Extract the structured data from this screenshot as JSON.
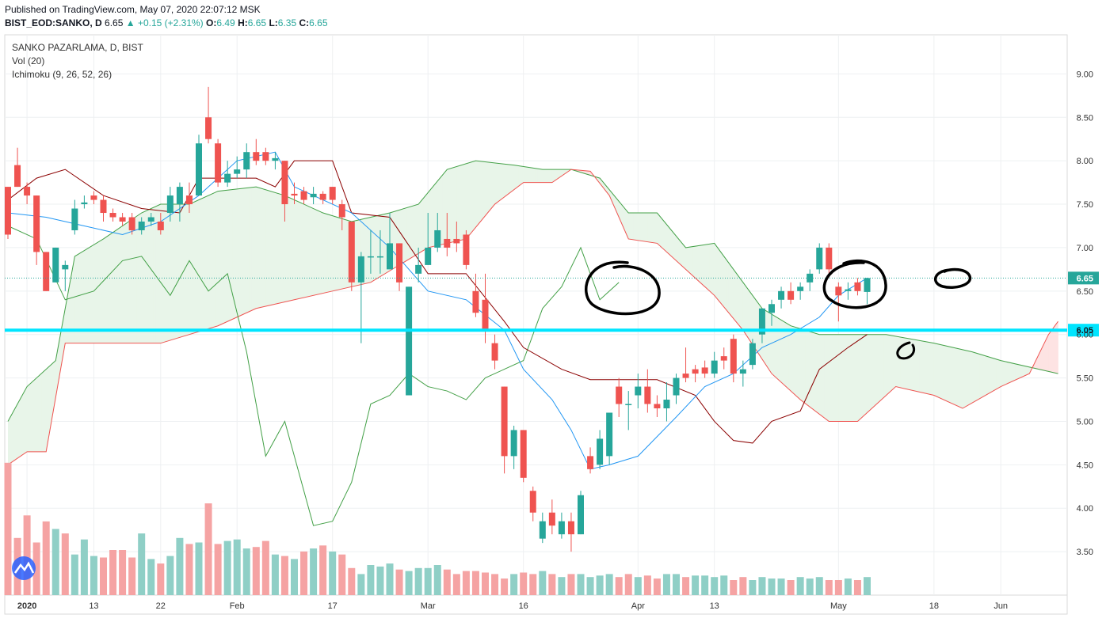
{
  "header": {
    "published": "Published on TradingView.com, May 07, 2020 22:07:12 MSK",
    "symbol": "BIST_EOD:SANKO, D",
    "last": "6.65",
    "change": "▲ +0.15 (+2.31%)",
    "o_label": "O:",
    "o_value": "6.49",
    "h_label": "H:",
    "h_value": "6.65",
    "l_label": "L:",
    "l_value": "6.35",
    "c_label": "C:",
    "c_value": "6.65"
  },
  "legend": {
    "title": "SANKO PAZARLAMA, D, BIST",
    "volume": "Vol (20)",
    "ichimoku": "Ichimoku (9, 26, 52, 26)"
  },
  "colors": {
    "up": "#26a69a",
    "down": "#ef5350",
    "vol_up": "#8fcfc6",
    "vol_down": "#f5a3a3",
    "tenkan": "#2196f3",
    "kijun": "#8b0000",
    "span_a": "#43a047",
    "span_b": "#ef5350",
    "cloud_green": "#e8f5e9",
    "cloud_red": "#fde3e3",
    "hline": "#00e5ff",
    "annotation": "#000000"
  },
  "chart_data": {
    "type": "candlestick",
    "title": "SANKO PAZARLAMA, D, BIST",
    "ylim": [
      3.0,
      9.45
    ],
    "y_ticks": [
      "3.50",
      "4.00",
      "4.50",
      "5.00",
      "5.50",
      "6.00",
      "6.50",
      "7.00",
      "7.50",
      "8.00",
      "8.50",
      "9.00"
    ],
    "x_ticks": [
      {
        "label": "2020",
        "bar": 2
      },
      {
        "label": "13",
        "bar": 9
      },
      {
        "label": "22",
        "bar": 16
      },
      {
        "label": "Feb",
        "bar": 24
      },
      {
        "label": "17",
        "bar": 34
      },
      {
        "label": "Mar",
        "bar": 44
      },
      {
        "label": "16",
        "bar": 54
      },
      {
        "label": "Apr",
        "bar": 66
      },
      {
        "label": "13",
        "bar": 74
      },
      {
        "label": "May",
        "bar": 87
      },
      {
        "label": "18",
        "bar": 97
      },
      {
        "label": "Jun",
        "bar": 104
      }
    ],
    "last_price_label": "6.65",
    "hline_label": "6.05",
    "hline_value": 6.05,
    "candles": [
      [
        7.7,
        7.15,
        7.7,
        7.1
      ],
      [
        7.95,
        7.7,
        8.15,
        7.7
      ],
      [
        7.7,
        7.6,
        7.75,
        7.5
      ],
      [
        7.6,
        6.95,
        7.6,
        6.8
      ],
      [
        6.95,
        6.5,
        6.95,
        6.5
      ],
      [
        6.6,
        7.0,
        7.0,
        6.6
      ],
      [
        6.75,
        6.8,
        6.85,
        6.5
      ],
      [
        7.2,
        7.45,
        7.55,
        7.15
      ],
      [
        7.5,
        7.52,
        7.6,
        7.45
      ],
      [
        7.6,
        7.55,
        7.65,
        7.5
      ],
      [
        7.55,
        7.4,
        7.6,
        7.3
      ],
      [
        7.4,
        7.35,
        7.45,
        7.3
      ],
      [
        7.35,
        7.3,
        7.4,
        7.25
      ],
      [
        7.35,
        7.2,
        7.4,
        7.15
      ],
      [
        7.2,
        7.3,
        7.35,
        7.15
      ],
      [
        7.3,
        7.35,
        7.4,
        7.25
      ],
      [
        7.3,
        7.2,
        7.4,
        7.15
      ],
      [
        7.4,
        7.6,
        7.7,
        7.3
      ],
      [
        7.5,
        7.7,
        7.75,
        7.3
      ],
      [
        7.6,
        7.5,
        7.75,
        7.4
      ],
      [
        7.6,
        8.2,
        8.3,
        7.6
      ],
      [
        8.5,
        8.25,
        8.85,
        8.2
      ],
      [
        8.2,
        7.75,
        8.25,
        7.7
      ],
      [
        7.75,
        7.85,
        8.0,
        7.7
      ],
      [
        7.85,
        7.9,
        8.05,
        7.8
      ],
      [
        7.9,
        8.1,
        8.2,
        7.8
      ],
      [
        8.1,
        8.0,
        8.25,
        7.95
      ],
      [
        8.1,
        8.0,
        8.15,
        7.95
      ],
      [
        8.0,
        8.03,
        8.1,
        7.9
      ],
      [
        8.0,
        7.5,
        8.0,
        7.3
      ],
      [
        7.62,
        7.6,
        7.75,
        7.5
      ],
      [
        7.65,
        7.55,
        7.7,
        7.5
      ],
      [
        7.58,
        7.62,
        7.7,
        7.5
      ],
      [
        7.62,
        7.55,
        7.65,
        7.5
      ],
      [
        7.7,
        7.55,
        7.7,
        7.5
      ],
      [
        7.5,
        7.35,
        7.55,
        7.2
      ],
      [
        7.3,
        6.6,
        7.3,
        6.5
      ],
      [
        6.6,
        6.9,
        6.95,
        5.9
      ],
      [
        6.9,
        6.9,
        7.2,
        6.7
      ],
      [
        6.9,
        6.9,
        7.2,
        6.7
      ],
      [
        6.75,
        7.05,
        7.4,
        6.75
      ],
      [
        7.05,
        6.6,
        7.05,
        6.5
      ],
      [
        5.3,
        6.55,
        6.55,
        5.3
      ],
      [
        6.7,
        6.8,
        7.0,
        6.6
      ],
      [
        6.8,
        7.0,
        7.4,
        6.8
      ],
      [
        7.0,
        7.2,
        7.4,
        6.95
      ],
      [
        7.1,
        7.0,
        7.4,
        6.9
      ],
      [
        7.1,
        7.05,
        7.3,
        6.95
      ],
      [
        7.15,
        6.8,
        7.2,
        6.75
      ],
      [
        6.5,
        6.25,
        6.7,
        6.2
      ],
      [
        6.4,
        6.05,
        6.7,
        5.9
      ],
      [
        5.9,
        5.7,
        6.0,
        5.6
      ],
      [
        5.4,
        4.6,
        5.4,
        4.4
      ],
      [
        4.6,
        4.9,
        4.95,
        4.45
      ],
      [
        4.9,
        4.35,
        4.9,
        4.3
      ],
      [
        4.2,
        3.95,
        4.25,
        3.85
      ],
      [
        3.65,
        3.85,
        3.95,
        3.6
      ],
      [
        3.95,
        3.8,
        4.1,
        3.7
      ],
      [
        3.7,
        3.85,
        3.95,
        3.65
      ],
      [
        3.85,
        3.7,
        3.95,
        3.5
      ],
      [
        3.7,
        4.15,
        4.2,
        3.7
      ],
      [
        4.6,
        4.45,
        4.7,
        4.4
      ],
      [
        4.5,
        4.8,
        4.9,
        4.45
      ],
      [
        4.6,
        5.1,
        5.1,
        4.5
      ],
      [
        5.4,
        5.2,
        5.5,
        5.05
      ],
      [
        5.2,
        5.2,
        5.35,
        4.9
      ],
      [
        5.3,
        5.4,
        5.55,
        5.15
      ],
      [
        5.4,
        5.2,
        5.6,
        5.1
      ],
      [
        5.2,
        5.15,
        5.3,
        5.05
      ],
      [
        5.15,
        5.25,
        5.45,
        5.0
      ],
      [
        5.3,
        5.5,
        5.55,
        5.2
      ],
      [
        5.55,
        5.5,
        5.85,
        5.45
      ],
      [
        5.6,
        5.55,
        5.65,
        5.45
      ],
      [
        5.62,
        5.55,
        5.7,
        5.5
      ],
      [
        5.55,
        5.7,
        5.8,
        5.5
      ],
      [
        5.75,
        5.7,
        5.85,
        5.6
      ],
      [
        5.95,
        5.55,
        6.0,
        5.45
      ],
      [
        5.55,
        5.6,
        5.7,
        5.4
      ],
      [
        5.65,
        5.9,
        5.95,
        5.6
      ],
      [
        6.0,
        6.3,
        6.3,
        5.9
      ],
      [
        6.25,
        6.35,
        6.4,
        6.1
      ],
      [
        6.4,
        6.5,
        6.55,
        6.3
      ],
      [
        6.5,
        6.4,
        6.6,
        6.35
      ],
      [
        6.5,
        6.55,
        6.6,
        6.4
      ],
      [
        6.6,
        6.7,
        6.75,
        6.5
      ],
      [
        6.75,
        7.0,
        7.05,
        6.7
      ],
      [
        7.0,
        6.75,
        7.05,
        6.7
      ],
      [
        6.55,
        6.45,
        6.6,
        6.15
      ],
      [
        6.5,
        6.52,
        6.6,
        6.4
      ],
      [
        6.6,
        6.5,
        6.65,
        6.45
      ],
      [
        6.49,
        6.65,
        6.65,
        6.35
      ]
    ],
    "volume_up": [
      false,
      false,
      false,
      false,
      false,
      true,
      false,
      true,
      true,
      true,
      false,
      false,
      false,
      false,
      true,
      true,
      false,
      true,
      true,
      false,
      true,
      false,
      false,
      true,
      true,
      true,
      false,
      false,
      true,
      false,
      true,
      false,
      true,
      false,
      true,
      false,
      false,
      true,
      true,
      true,
      true,
      false,
      true,
      true,
      true,
      true,
      false,
      false,
      false,
      false,
      false,
      false,
      false,
      true,
      false,
      false,
      true,
      false,
      true,
      false,
      true,
      true,
      true,
      true,
      false,
      false,
      true,
      false,
      false,
      true,
      true,
      false,
      true,
      true,
      true,
      true,
      false,
      false,
      true,
      true,
      true,
      true,
      false,
      true,
      true,
      true,
      false,
      false,
      true,
      false,
      true
    ],
    "volume_level": [
      0.88,
      0.38,
      0.53,
      0.35,
      0.49,
      0.44,
      0.41,
      0.27,
      0.37,
      0.26,
      0.25,
      0.3,
      0.3,
      0.25,
      0.41,
      0.24,
      0.21,
      0.26,
      0.38,
      0.34,
      0.35,
      0.61,
      0.34,
      0.36,
      0.37,
      0.31,
      0.32,
      0.36,
      0.27,
      0.26,
      0.24,
      0.29,
      0.31,
      0.33,
      0.29,
      0.27,
      0.18,
      0.14,
      0.2,
      0.19,
      0.21,
      0.17,
      0.16,
      0.18,
      0.18,
      0.2,
      0.17,
      0.14,
      0.16,
      0.16,
      0.15,
      0.14,
      0.11,
      0.14,
      0.15,
      0.14,
      0.16,
      0.14,
      0.12,
      0.14,
      0.14,
      0.12,
      0.13,
      0.14,
      0.12,
      0.14,
      0.12,
      0.13,
      0.11,
      0.14,
      0.14,
      0.12,
      0.13,
      0.13,
      0.12,
      0.13,
      0.1,
      0.12,
      0.1,
      0.12,
      0.11,
      0.11,
      0.1,
      0.12,
      0.11,
      0.12,
      0.1,
      0.1,
      0.11,
      0.1,
      0.12
    ],
    "tenkan": [
      [
        0,
        7.4
      ],
      [
        4,
        7.35
      ],
      [
        8,
        7.25
      ],
      [
        12,
        7.15
      ],
      [
        16,
        7.3
      ],
      [
        20,
        7.6
      ],
      [
        24,
        8.0
      ],
      [
        28,
        8.1
      ],
      [
        30,
        7.7
      ],
      [
        36,
        7.4
      ],
      [
        40,
        7.0
      ],
      [
        44,
        6.5
      ],
      [
        48,
        6.4
      ],
      [
        52,
        6.05
      ],
      [
        54,
        5.6
      ],
      [
        57,
        5.25
      ],
      [
        59,
        4.9
      ],
      [
        61,
        4.45
      ],
      [
        63,
        4.5
      ],
      [
        66,
        4.6
      ],
      [
        70,
        5.05
      ],
      [
        73,
        5.4
      ],
      [
        76,
        5.55
      ],
      [
        79,
        5.85
      ],
      [
        82,
        6.0
      ],
      [
        85,
        6.2
      ],
      [
        87,
        6.45
      ],
      [
        90,
        6.65
      ]
    ],
    "kijun": [
      [
        0,
        7.55
      ],
      [
        3,
        7.8
      ],
      [
        6,
        7.9
      ],
      [
        10,
        7.6
      ],
      [
        14,
        7.45
      ],
      [
        18,
        7.4
      ],
      [
        20,
        7.8
      ],
      [
        26,
        7.8
      ],
      [
        28,
        7.7
      ],
      [
        30,
        8.0
      ],
      [
        34,
        8.0
      ],
      [
        36,
        7.4
      ],
      [
        40,
        7.35
      ],
      [
        44,
        6.7
      ],
      [
        48,
        6.7
      ],
      [
        52,
        6.15
      ],
      [
        54,
        5.85
      ],
      [
        58,
        5.6
      ],
      [
        61,
        5.48
      ],
      [
        68,
        5.48
      ],
      [
        72,
        5.3
      ],
      [
        74,
        5.0
      ],
      [
        76,
        4.78
      ],
      [
        78,
        4.75
      ],
      [
        80,
        5.0
      ],
      [
        83,
        5.12
      ],
      [
        85,
        5.6
      ],
      [
        88,
        5.85
      ],
      [
        90,
        6.0
      ]
    ],
    "span_a": [
      [
        0,
        5.0
      ],
      [
        2,
        5.4
      ],
      [
        5,
        5.7
      ],
      [
        7,
        6.9
      ],
      [
        10,
        7.1
      ],
      [
        14,
        7.4
      ],
      [
        16,
        7.5
      ],
      [
        19,
        7.5
      ],
      [
        22,
        7.65
      ],
      [
        26,
        7.7
      ],
      [
        29,
        7.6
      ],
      [
        33,
        7.4
      ],
      [
        36,
        7.3
      ],
      [
        40,
        7.4
      ],
      [
        43,
        7.5
      ],
      [
        46,
        7.9
      ],
      [
        49,
        8.0
      ],
      [
        53,
        7.95
      ],
      [
        56,
        7.9
      ],
      [
        59,
        7.9
      ],
      [
        62,
        7.8
      ],
      [
        65,
        7.4
      ],
      [
        68,
        7.4
      ],
      [
        71,
        7.0
      ],
      [
        74,
        7.05
      ],
      [
        77,
        6.6
      ],
      [
        79,
        6.3
      ],
      [
        82,
        6.1
      ],
      [
        85,
        6.0
      ],
      [
        88,
        6.0
      ],
      [
        92,
        6.0
      ],
      [
        97,
        5.9
      ],
      [
        101,
        5.8
      ],
      [
        104,
        5.7
      ],
      [
        108,
        5.6
      ],
      [
        110,
        5.55
      ]
    ],
    "span_b": [
      [
        0,
        4.5
      ],
      [
        2,
        4.65
      ],
      [
        4,
        4.65
      ],
      [
        6,
        5.9
      ],
      [
        10,
        5.9
      ],
      [
        16,
        5.9
      ],
      [
        19,
        6.0
      ],
      [
        22,
        6.1
      ],
      [
        26,
        6.3
      ],
      [
        30,
        6.4
      ],
      [
        34,
        6.5
      ],
      [
        38,
        6.6
      ],
      [
        41,
        6.8
      ],
      [
        44,
        7.0
      ],
      [
        48,
        7.1
      ],
      [
        51,
        7.5
      ],
      [
        54,
        7.75
      ],
      [
        57,
        7.75
      ],
      [
        59,
        7.9
      ],
      [
        61,
        7.88
      ],
      [
        63,
        7.6
      ],
      [
        65,
        7.1
      ],
      [
        68,
        7.05
      ],
      [
        71,
        6.75
      ],
      [
        74,
        6.45
      ],
      [
        77,
        6.05
      ],
      [
        80,
        5.55
      ],
      [
        83,
        5.25
      ],
      [
        86,
        5.0
      ],
      [
        89,
        5.0
      ],
      [
        93,
        5.4
      ],
      [
        97,
        5.3
      ],
      [
        100,
        5.15
      ],
      [
        104,
        5.4
      ],
      [
        107,
        5.55
      ],
      [
        109,
        6.0
      ],
      [
        110,
        6.15
      ]
    ],
    "chikou": [
      [
        0,
        7.25
      ],
      [
        3,
        7.1
      ],
      [
        6,
        6.4
      ],
      [
        9,
        6.5
      ],
      [
        12,
        6.85
      ],
      [
        14,
        6.9
      ],
      [
        17,
        6.45
      ],
      [
        19,
        6.85
      ],
      [
        21,
        6.5
      ],
      [
        23,
        6.7
      ],
      [
        25,
        5.8
      ],
      [
        27,
        4.6
      ],
      [
        29,
        5.0
      ],
      [
        32,
        3.8
      ],
      [
        34,
        3.85
      ],
      [
        36,
        4.3
      ],
      [
        38,
        5.2
      ],
      [
        40,
        5.3
      ],
      [
        42,
        5.55
      ],
      [
        44,
        5.4
      ],
      [
        46,
        5.35
      ],
      [
        48,
        5.25
      ],
      [
        50,
        5.5
      ],
      [
        52,
        5.6
      ],
      [
        54,
        5.7
      ],
      [
        56,
        6.3
      ],
      [
        58,
        6.55
      ],
      [
        60,
        7.0
      ],
      [
        62,
        6.4
      ],
      [
        64,
        6.6
      ]
    ]
  }
}
